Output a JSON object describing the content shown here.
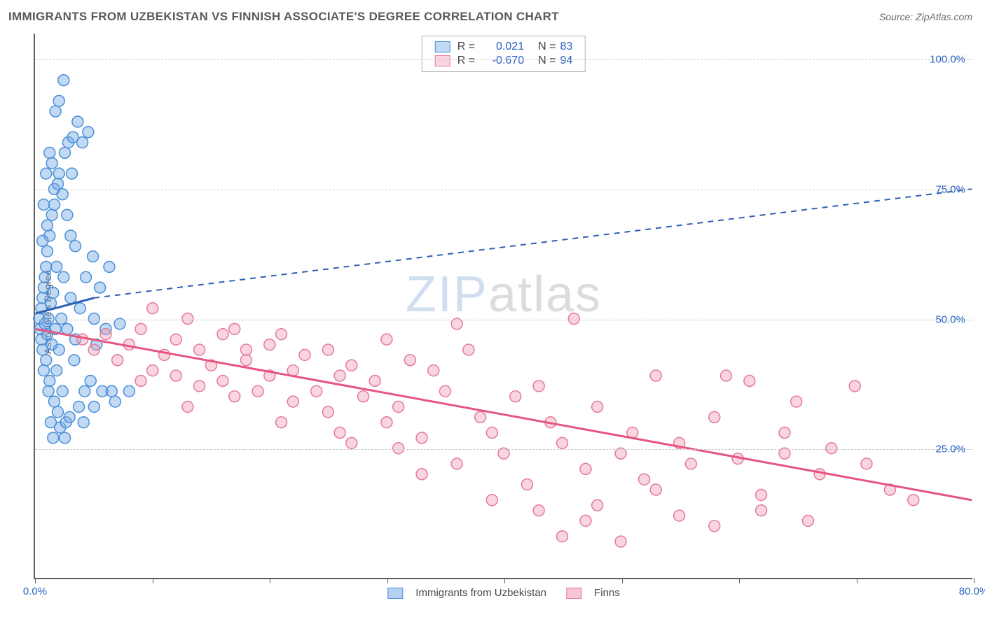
{
  "header": {
    "title": "IMMIGRANTS FROM UZBEKISTAN VS FINNISH ASSOCIATE'S DEGREE CORRELATION CHART",
    "source_label": "Source: ZipAtlas.com"
  },
  "chart": {
    "type": "scatter",
    "ylabel": "Associate's Degree",
    "xlim": [
      0,
      80
    ],
    "ylim": [
      0,
      105
    ],
    "xtick_positions": [
      0,
      10,
      20,
      30,
      40,
      50,
      60,
      70,
      80
    ],
    "xtick_labels": {
      "start": "0.0%",
      "end": "80.0%"
    },
    "ytick_positions": [
      25,
      50,
      75,
      100
    ],
    "ytick_labels": [
      "25.0%",
      "50.0%",
      "75.0%",
      "100.0%"
    ],
    "grid_color": "#c8c8c8",
    "axis_color": "#606060",
    "background_color": "#ffffff",
    "tick_label_color": "#2962c4",
    "watermark": {
      "text_a": "ZIP",
      "text_b": "atlas"
    },
    "series": [
      {
        "name": "Immigrants from Uzbekistan",
        "marker_color_fill": "rgba(120,170,230,0.45)",
        "marker_color_stroke": "#4a8fd8",
        "marker_radius": 8,
        "trend": {
          "x1": 0,
          "y1": 51,
          "x2": 5,
          "y2": 54,
          "x2_dash": 80,
          "y2_dash": 75,
          "color": "#2d5fb2",
          "width": 3
        },
        "legend_stats": {
          "R": "0.021",
          "N": "83"
        },
        "points": [
          [
            0.3,
            50
          ],
          [
            0.4,
            48
          ],
          [
            0.5,
            52
          ],
          [
            0.5,
            46
          ],
          [
            0.6,
            54
          ],
          [
            0.6,
            44
          ],
          [
            0.7,
            56
          ],
          [
            0.7,
            40
          ],
          [
            0.8,
            49
          ],
          [
            0.8,
            58
          ],
          [
            0.9,
            42
          ],
          [
            0.9,
            60
          ],
          [
            1.0,
            47
          ],
          [
            1.0,
            63
          ],
          [
            1.1,
            36
          ],
          [
            1.1,
            50
          ],
          [
            1.2,
            66
          ],
          [
            1.2,
            38
          ],
          [
            1.3,
            53
          ],
          [
            1.3,
            30
          ],
          [
            1.4,
            70
          ],
          [
            1.4,
            45
          ],
          [
            1.5,
            27
          ],
          [
            1.5,
            55
          ],
          [
            1.6,
            72
          ],
          [
            1.6,
            34
          ],
          [
            1.7,
            48
          ],
          [
            1.8,
            40
          ],
          [
            1.8,
            60
          ],
          [
            1.9,
            32
          ],
          [
            2.0,
            78
          ],
          [
            2.0,
            44
          ],
          [
            2.1,
            29
          ],
          [
            2.2,
            50
          ],
          [
            2.3,
            36
          ],
          [
            2.4,
            58
          ],
          [
            2.5,
            82
          ],
          [
            2.5,
            27
          ],
          [
            2.6,
            30
          ],
          [
            2.7,
            48
          ],
          [
            2.8,
            84
          ],
          [
            2.9,
            31
          ],
          [
            3.0,
            54
          ],
          [
            3.1,
            78
          ],
          [
            3.2,
            85
          ],
          [
            3.3,
            42
          ],
          [
            3.4,
            46
          ],
          [
            3.6,
            88
          ],
          [
            3.7,
            33
          ],
          [
            3.8,
            52
          ],
          [
            4.0,
            84
          ],
          [
            4.1,
            30
          ],
          [
            4.3,
            58
          ],
          [
            4.5,
            86
          ],
          [
            4.7,
            38
          ],
          [
            4.9,
            62
          ],
          [
            5.0,
            50
          ],
          [
            5.2,
            45
          ],
          [
            5.5,
            56
          ],
          [
            5.7,
            36
          ],
          [
            6.0,
            48
          ],
          [
            6.3,
            60
          ],
          [
            6.8,
            34
          ],
          [
            7.2,
            49
          ],
          [
            2.4,
            96
          ],
          [
            2.0,
            92
          ],
          [
            1.7,
            90
          ],
          [
            1.6,
            75
          ],
          [
            1.4,
            80
          ],
          [
            1.9,
            76
          ],
          [
            2.3,
            74
          ],
          [
            2.7,
            70
          ],
          [
            3.0,
            66
          ],
          [
            3.4,
            64
          ],
          [
            0.9,
            78
          ],
          [
            1.2,
            82
          ],
          [
            1.0,
            68
          ],
          [
            0.6,
            65
          ],
          [
            0.7,
            72
          ],
          [
            4.2,
            36
          ],
          [
            5.0,
            33
          ],
          [
            6.5,
            36
          ],
          [
            8.0,
            36
          ]
        ]
      },
      {
        "name": "Finns",
        "marker_color_fill": "rgba(240,150,175,0.40)",
        "marker_color_stroke": "#e57a9a",
        "marker_radius": 8,
        "trend": {
          "x1": 0,
          "y1": 48,
          "x2": 80,
          "y2": 15,
          "color": "#e75480",
          "width": 3
        },
        "legend_stats": {
          "R": "-0.670",
          "N": "94"
        },
        "points": [
          [
            4,
            46
          ],
          [
            5,
            44
          ],
          [
            6,
            47
          ],
          [
            7,
            42
          ],
          [
            8,
            45
          ],
          [
            9,
            48
          ],
          [
            10,
            40
          ],
          [
            10,
            52
          ],
          [
            11,
            43
          ],
          [
            12,
            39
          ],
          [
            12,
            46
          ],
          [
            13,
            50
          ],
          [
            14,
            37
          ],
          [
            14,
            44
          ],
          [
            15,
            41
          ],
          [
            16,
            38
          ],
          [
            16,
            47
          ],
          [
            17,
            35
          ],
          [
            18,
            42
          ],
          [
            18,
            44
          ],
          [
            19,
            36
          ],
          [
            20,
            39
          ],
          [
            20,
            45
          ],
          [
            21,
            30
          ],
          [
            22,
            40
          ],
          [
            22,
            34
          ],
          [
            23,
            43
          ],
          [
            24,
            36
          ],
          [
            25,
            44
          ],
          [
            25,
            32
          ],
          [
            26,
            39
          ],
          [
            27,
            26
          ],
          [
            27,
            41
          ],
          [
            28,
            35
          ],
          [
            29,
            38
          ],
          [
            30,
            46
          ],
          [
            30,
            30
          ],
          [
            31,
            33
          ],
          [
            32,
            42
          ],
          [
            33,
            27
          ],
          [
            34,
            40
          ],
          [
            35,
            36
          ],
          [
            36,
            22
          ],
          [
            37,
            44
          ],
          [
            38,
            31
          ],
          [
            39,
            28
          ],
          [
            40,
            24
          ],
          [
            41,
            35
          ],
          [
            42,
            18
          ],
          [
            43,
            37
          ],
          [
            44,
            30
          ],
          [
            45,
            26
          ],
          [
            46,
            50
          ],
          [
            47,
            21
          ],
          [
            48,
            33
          ],
          [
            50,
            24
          ],
          [
            51,
            28
          ],
          [
            52,
            19
          ],
          [
            53,
            39
          ],
          [
            55,
            26
          ],
          [
            56,
            22
          ],
          [
            58,
            31
          ],
          [
            60,
            23
          ],
          [
            61,
            38
          ],
          [
            62,
            16
          ],
          [
            64,
            28
          ],
          [
            65,
            34
          ],
          [
            67,
            20
          ],
          [
            68,
            25
          ],
          [
            70,
            37
          ],
          [
            71,
            22
          ],
          [
            73,
            17
          ],
          [
            75,
            15
          ],
          [
            45,
            8
          ],
          [
            47,
            11
          ],
          [
            50,
            7
          ],
          [
            55,
            12
          ],
          [
            58,
            10
          ],
          [
            62,
            13
          ],
          [
            64,
            24
          ],
          [
            66,
            11
          ],
          [
            59,
            39
          ],
          [
            9,
            38
          ],
          [
            13,
            33
          ],
          [
            17,
            48
          ],
          [
            21,
            47
          ],
          [
            26,
            28
          ],
          [
            31,
            25
          ],
          [
            36,
            49
          ],
          [
            48,
            14
          ],
          [
            53,
            17
          ],
          [
            33,
            20
          ],
          [
            39,
            15
          ],
          [
            43,
            13
          ]
        ]
      }
    ]
  },
  "bottom_legend": {
    "items": [
      {
        "label": "Immigrants from Uzbekistan",
        "fill": "rgba(120,170,230,0.55)",
        "stroke": "#4a8fd8"
      },
      {
        "label": "Finns",
        "fill": "rgba(240,150,175,0.55)",
        "stroke": "#e57a9a"
      }
    ]
  }
}
